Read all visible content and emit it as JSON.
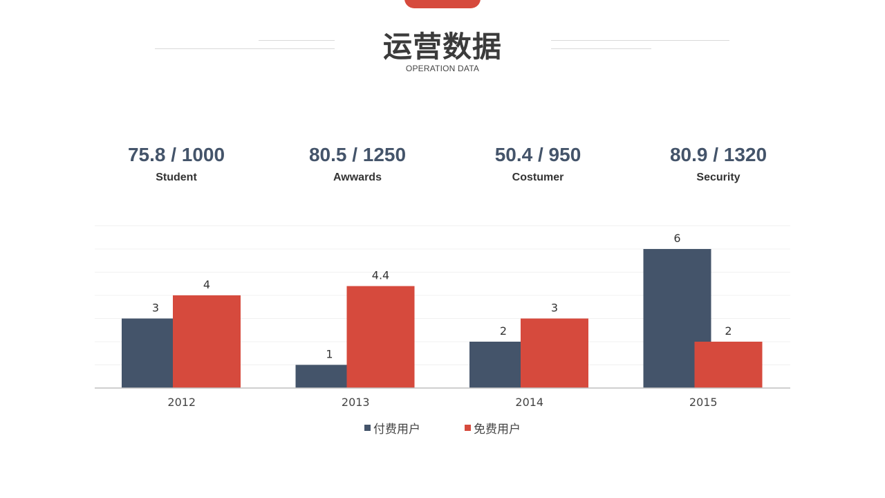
{
  "header": {
    "title": "运营数据",
    "subtitle": "OPERATION DATA"
  },
  "stats": [
    {
      "value": "75.8 / 1000",
      "label": "Student"
    },
    {
      "value": "80.5 / 1250",
      "label": "Awwards"
    },
    {
      "value": "50.4 / 950",
      "label": "Costumer"
    },
    {
      "value": "80.9 / 1320",
      "label": "Security"
    }
  ],
  "colors": {
    "accent": "#d64a3d",
    "series_paid": "#44546a",
    "series_free": "#d64a3d"
  },
  "chart_data": {
    "type": "bar",
    "categories": [
      "2012",
      "2013",
      "2014",
      "2015"
    ],
    "series": [
      {
        "name": "付费用户",
        "values": [
          3,
          1,
          2,
          6
        ],
        "color": "#44546a"
      },
      {
        "name": "免费用户",
        "values": [
          4,
          4.4,
          3,
          2
        ],
        "color": "#d64a3d"
      }
    ],
    "ylim": [
      0,
      7
    ],
    "grid": true,
    "data_labels": true,
    "legend": "bottom"
  }
}
